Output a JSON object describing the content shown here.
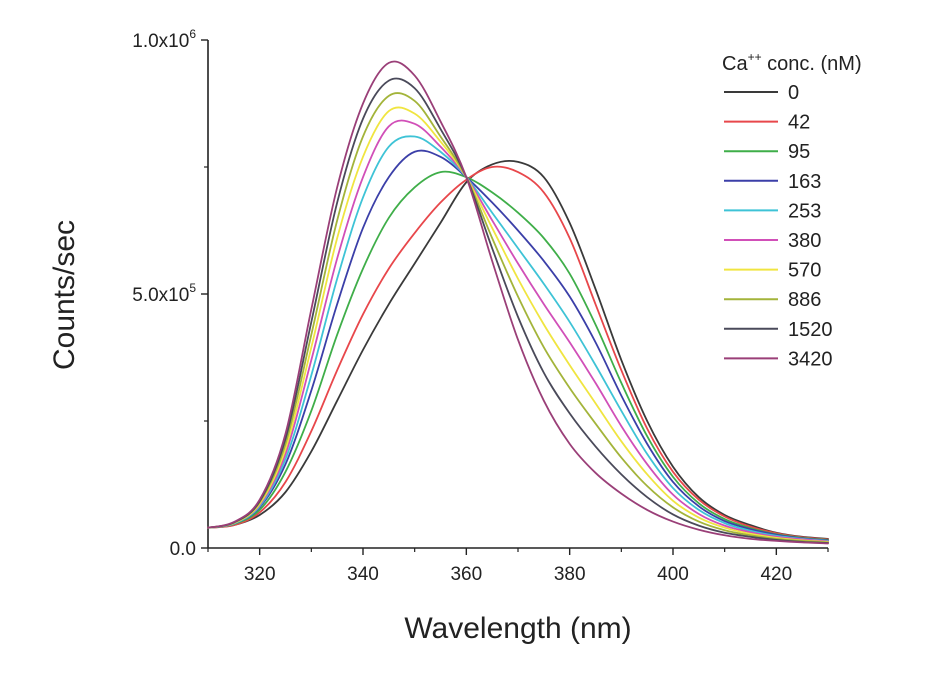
{
  "chart_data": {
    "type": "line",
    "xlabel": "Wavelength (nm)",
    "ylabel": "Counts/sec",
    "xlim": [
      310,
      430
    ],
    "ylim": [
      0,
      1000000
    ],
    "x_ticks": [
      320,
      340,
      360,
      380,
      400,
      420
    ],
    "y_ticks": [
      {
        "value": 0,
        "label": "0.0",
        "exp": ""
      },
      {
        "value": 500000,
        "label": "5.0x10",
        "exp": "5"
      },
      {
        "value": 1000000,
        "label": "1.0x10",
        "exp": "6"
      }
    ],
    "grid": false,
    "legend": {
      "title": "Ca",
      "title_sup": "++",
      "title_rest": " conc. (nM)",
      "position": "top-right"
    },
    "series": [
      {
        "name": "0",
        "color": "#3a3a3a",
        "points": [
          [
            310,
            40000
          ],
          [
            315,
            45000
          ],
          [
            320,
            65000
          ],
          [
            325,
            110000
          ],
          [
            330,
            190000
          ],
          [
            335,
            290000
          ],
          [
            340,
            390000
          ],
          [
            345,
            480000
          ],
          [
            350,
            560000
          ],
          [
            355,
            640000
          ],
          [
            360,
            720000
          ],
          [
            365,
            755000
          ],
          [
            370,
            760000
          ],
          [
            375,
            730000
          ],
          [
            380,
            640000
          ],
          [
            385,
            510000
          ],
          [
            390,
            370000
          ],
          [
            395,
            250000
          ],
          [
            400,
            160000
          ],
          [
            405,
            100000
          ],
          [
            410,
            65000
          ],
          [
            415,
            45000
          ],
          [
            420,
            30000
          ],
          [
            425,
            22000
          ],
          [
            430,
            18000
          ]
        ]
      },
      {
        "name": "42",
        "color": "#e8474b",
        "points": [
          [
            310,
            40000
          ],
          [
            315,
            45000
          ],
          [
            320,
            70000
          ],
          [
            325,
            130000
          ],
          [
            330,
            230000
          ],
          [
            335,
            350000
          ],
          [
            340,
            460000
          ],
          [
            345,
            550000
          ],
          [
            350,
            620000
          ],
          [
            355,
            680000
          ],
          [
            360,
            725000
          ],
          [
            365,
            750000
          ],
          [
            370,
            740000
          ],
          [
            375,
            700000
          ],
          [
            380,
            610000
          ],
          [
            385,
            480000
          ],
          [
            390,
            350000
          ],
          [
            395,
            235000
          ],
          [
            400,
            150000
          ],
          [
            405,
            95000
          ],
          [
            410,
            62000
          ],
          [
            415,
            42000
          ],
          [
            420,
            29000
          ],
          [
            425,
            21000
          ],
          [
            430,
            17000
          ]
        ]
      },
      {
        "name": "95",
        "color": "#3fae49",
        "points": [
          [
            310,
            40000
          ],
          [
            315,
            47000
          ],
          [
            320,
            75000
          ],
          [
            325,
            150000
          ],
          [
            330,
            270000
          ],
          [
            335,
            420000
          ],
          [
            340,
            550000
          ],
          [
            345,
            650000
          ],
          [
            350,
            710000
          ],
          [
            355,
            740000
          ],
          [
            360,
            730000
          ],
          [
            365,
            700000
          ],
          [
            370,
            660000
          ],
          [
            375,
            610000
          ],
          [
            380,
            540000
          ],
          [
            385,
            440000
          ],
          [
            390,
            325000
          ],
          [
            395,
            220000
          ],
          [
            400,
            140000
          ],
          [
            405,
            88000
          ],
          [
            410,
            57000
          ],
          [
            415,
            39000
          ],
          [
            420,
            27000
          ],
          [
            425,
            20000
          ],
          [
            430,
            16000
          ]
        ]
      },
      {
        "name": "163",
        "color": "#3b3fa8",
        "points": [
          [
            310,
            40000
          ],
          [
            315,
            48000
          ],
          [
            320,
            80000
          ],
          [
            325,
            165000
          ],
          [
            330,
            310000
          ],
          [
            335,
            480000
          ],
          [
            340,
            630000
          ],
          [
            345,
            730000
          ],
          [
            350,
            780000
          ],
          [
            355,
            770000
          ],
          [
            360,
            730000
          ],
          [
            365,
            680000
          ],
          [
            370,
            625000
          ],
          [
            375,
            565000
          ],
          [
            380,
            495000
          ],
          [
            385,
            405000
          ],
          [
            390,
            300000
          ],
          [
            395,
            205000
          ],
          [
            400,
            130000
          ],
          [
            405,
            82000
          ],
          [
            410,
            53000
          ],
          [
            415,
            37000
          ],
          [
            420,
            26000
          ],
          [
            425,
            19000
          ],
          [
            430,
            15000
          ]
        ]
      },
      {
        "name": "253",
        "color": "#3ec3d6",
        "points": [
          [
            310,
            40000
          ],
          [
            315,
            48000
          ],
          [
            320,
            82000
          ],
          [
            325,
            175000
          ],
          [
            330,
            340000
          ],
          [
            335,
            530000
          ],
          [
            340,
            690000
          ],
          [
            345,
            790000
          ],
          [
            350,
            810000
          ],
          [
            355,
            780000
          ],
          [
            360,
            730000
          ],
          [
            365,
            660000
          ],
          [
            370,
            590000
          ],
          [
            375,
            520000
          ],
          [
            380,
            445000
          ],
          [
            385,
            360000
          ],
          [
            390,
            270000
          ],
          [
            395,
            185000
          ],
          [
            400,
            118000
          ],
          [
            405,
            75000
          ],
          [
            410,
            49000
          ],
          [
            415,
            34000
          ],
          [
            420,
            24000
          ],
          [
            425,
            18000
          ],
          [
            430,
            14000
          ]
        ]
      },
      {
        "name": "380",
        "color": "#d14fb8",
        "points": [
          [
            310,
            40000
          ],
          [
            315,
            49000
          ],
          [
            320,
            85000
          ],
          [
            325,
            185000
          ],
          [
            330,
            370000
          ],
          [
            335,
            570000
          ],
          [
            340,
            730000
          ],
          [
            345,
            830000
          ],
          [
            350,
            835000
          ],
          [
            355,
            790000
          ],
          [
            360,
            730000
          ],
          [
            365,
            645000
          ],
          [
            370,
            560000
          ],
          [
            375,
            480000
          ],
          [
            380,
            405000
          ],
          [
            385,
            325000
          ],
          [
            390,
            240000
          ],
          [
            395,
            165000
          ],
          [
            400,
            105000
          ],
          [
            405,
            67000
          ],
          [
            410,
            44000
          ],
          [
            415,
            31000
          ],
          [
            420,
            22000
          ],
          [
            425,
            17000
          ],
          [
            430,
            13000
          ]
        ]
      },
      {
        "name": "570",
        "color": "#f0e540",
        "points": [
          [
            310,
            40000
          ],
          [
            315,
            49000
          ],
          [
            320,
            87000
          ],
          [
            325,
            195000
          ],
          [
            330,
            395000
          ],
          [
            335,
            610000
          ],
          [
            340,
            770000
          ],
          [
            345,
            860000
          ],
          [
            350,
            855000
          ],
          [
            355,
            800000
          ],
          [
            360,
            730000
          ],
          [
            365,
            630000
          ],
          [
            370,
            530000
          ],
          [
            375,
            440000
          ],
          [
            380,
            360000
          ],
          [
            385,
            285000
          ],
          [
            390,
            210000
          ],
          [
            395,
            145000
          ],
          [
            400,
            93000
          ],
          [
            405,
            60000
          ],
          [
            410,
            40000
          ],
          [
            415,
            28000
          ],
          [
            420,
            20000
          ],
          [
            425,
            15000
          ],
          [
            430,
            12000
          ]
        ]
      },
      {
        "name": "886",
        "color": "#a3b43a",
        "points": [
          [
            310,
            40000
          ],
          [
            315,
            50000
          ],
          [
            320,
            90000
          ],
          [
            325,
            205000
          ],
          [
            330,
            420000
          ],
          [
            335,
            645000
          ],
          [
            340,
            810000
          ],
          [
            345,
            890000
          ],
          [
            350,
            880000
          ],
          [
            355,
            810000
          ],
          [
            360,
            730000
          ],
          [
            365,
            610000
          ],
          [
            370,
            495000
          ],
          [
            375,
            395000
          ],
          [
            380,
            315000
          ],
          [
            385,
            245000
          ],
          [
            390,
            178000
          ],
          [
            395,
            122000
          ],
          [
            400,
            80000
          ],
          [
            405,
            52000
          ],
          [
            410,
            35000
          ],
          [
            415,
            25000
          ],
          [
            420,
            18000
          ],
          [
            425,
            14000
          ],
          [
            430,
            11000
          ]
        ]
      },
      {
        "name": "1520",
        "color": "#4a4a5a",
        "points": [
          [
            310,
            40000
          ],
          [
            315,
            50000
          ],
          [
            320,
            92000
          ],
          [
            325,
            215000
          ],
          [
            330,
            445000
          ],
          [
            335,
            680000
          ],
          [
            340,
            845000
          ],
          [
            345,
            920000
          ],
          [
            350,
            905000
          ],
          [
            355,
            825000
          ],
          [
            360,
            730000
          ],
          [
            365,
            590000
          ],
          [
            370,
            455000
          ],
          [
            375,
            345000
          ],
          [
            380,
            265000
          ],
          [
            385,
            200000
          ],
          [
            390,
            145000
          ],
          [
            395,
            100000
          ],
          [
            400,
            66000
          ],
          [
            405,
            44000
          ],
          [
            410,
            30000
          ],
          [
            415,
            22000
          ],
          [
            420,
            16000
          ],
          [
            425,
            12000
          ],
          [
            430,
            10000
          ]
        ]
      },
      {
        "name": "3420",
        "color": "#9a3f78",
        "points": [
          [
            310,
            40000
          ],
          [
            315,
            51000
          ],
          [
            320,
            95000
          ],
          [
            325,
            225000
          ],
          [
            330,
            470000
          ],
          [
            335,
            710000
          ],
          [
            340,
            875000
          ],
          [
            345,
            955000
          ],
          [
            350,
            930000
          ],
          [
            355,
            840000
          ],
          [
            360,
            730000
          ],
          [
            365,
            565000
          ],
          [
            370,
            410000
          ],
          [
            375,
            290000
          ],
          [
            380,
            205000
          ],
          [
            385,
            148000
          ],
          [
            390,
            107000
          ],
          [
            395,
            75000
          ],
          [
            400,
            52000
          ],
          [
            405,
            36000
          ],
          [
            410,
            25000
          ],
          [
            415,
            18000
          ],
          [
            420,
            14000
          ],
          [
            425,
            11000
          ],
          [
            430,
            9000
          ]
        ]
      }
    ]
  }
}
